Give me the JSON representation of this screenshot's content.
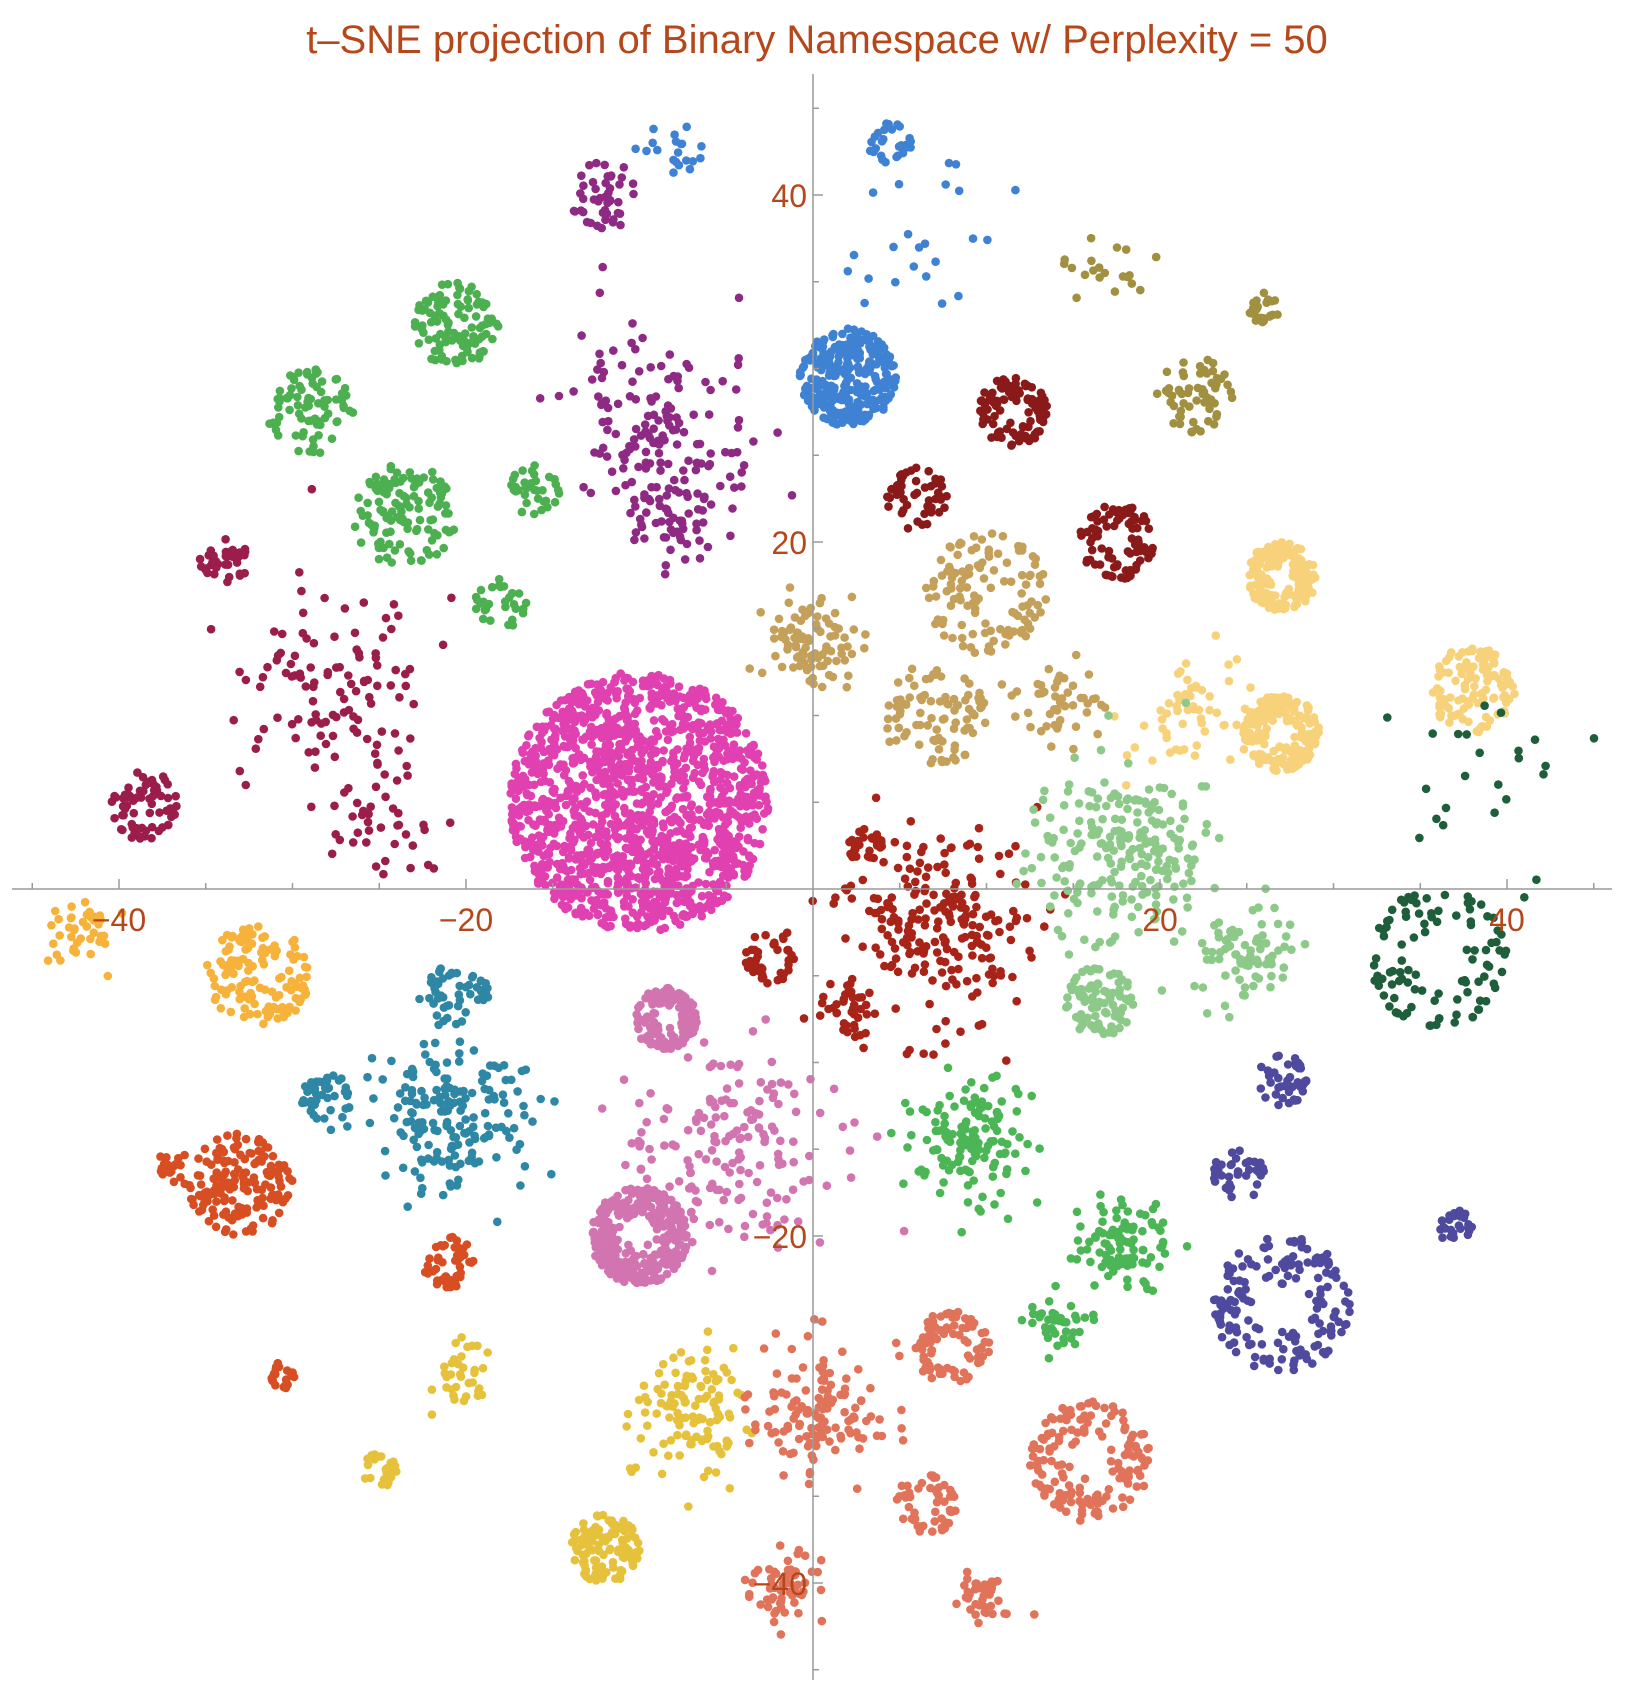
{
  "chart_data": {
    "type": "scatter",
    "title": "t–SNE projection of Binary Namespace w/ Perplexity = 50",
    "xlabel": "",
    "ylabel": "",
    "xlim": [
      -46,
      49
    ],
    "ylim": [
      -48,
      50
    ],
    "grid": false,
    "legend": "none",
    "x_ticks": [
      -40,
      -20,
      20,
      40
    ],
    "y_ticks": [
      40,
      20,
      -20,
      -40
    ],
    "x_tick_labels": [
      "−40",
      "−20",
      "20",
      "40"
    ],
    "y_tick_labels": [
      "40",
      "20",
      "−20",
      "−40"
    ],
    "axis_color": "#9a9a9a",
    "label_color": "#b5471b",
    "clusters": [
      {
        "color": "#e040b0",
        "center": [
          -10,
          5
        ],
        "spread": 7.5,
        "n": 1400,
        "shape": "disc"
      },
      {
        "color": "#3f82d4",
        "center": [
          2,
          29.5
        ],
        "spread": 2.8,
        "n": 300,
        "shape": "disc"
      },
      {
        "color": "#3f82d4",
        "center": [
          4.5,
          43
        ],
        "spread": 1.2,
        "n": 25,
        "shape": "ring"
      },
      {
        "color": "#3f82d4",
        "center": [
          6,
          37
        ],
        "spread": 6,
        "n": 25,
        "shape": "scatter"
      },
      {
        "color": "#3f82d4",
        "center": [
          -8,
          42
        ],
        "spread": 2,
        "n": 20,
        "shape": "scatter"
      },
      {
        "color": "#8e2a84",
        "center": [
          -12,
          40
        ],
        "spread": 2,
        "n": 45,
        "shape": "disc"
      },
      {
        "color": "#8e2a84",
        "center": [
          -9,
          27
        ],
        "spread": 6,
        "n": 120,
        "shape": "scatter"
      },
      {
        "color": "#8e2a84",
        "center": [
          -8,
          22
        ],
        "spread": 4,
        "n": 80,
        "shape": "scatter"
      },
      {
        "color": "#4caf50",
        "center": [
          -20.5,
          32.5
        ],
        "spread": 2.5,
        "n": 110,
        "shape": "disc"
      },
      {
        "color": "#4caf50",
        "center": [
          -29,
          27.5
        ],
        "spread": 2.5,
        "n": 80,
        "shape": "disc"
      },
      {
        "color": "#4caf50",
        "center": [
          -23.5,
          21.5
        ],
        "spread": 3,
        "n": 120,
        "shape": "disc"
      },
      {
        "color": "#4caf50",
        "center": [
          -16,
          23
        ],
        "spread": 1.5,
        "n": 35,
        "shape": "disc"
      },
      {
        "color": "#4caf50",
        "center": [
          -18,
          16.5
        ],
        "spread": 1.5,
        "n": 30,
        "shape": "disc"
      },
      {
        "color": "#9b1d4a",
        "center": [
          -34,
          19
        ],
        "spread": 1.5,
        "n": 35,
        "shape": "disc"
      },
      {
        "color": "#9b1d4a",
        "center": [
          -28,
          12
        ],
        "spread": 6,
        "n": 110,
        "shape": "scatter"
      },
      {
        "color": "#9b1d4a",
        "center": [
          -38.5,
          4.8
        ],
        "spread": 2,
        "n": 70,
        "shape": "disc"
      },
      {
        "color": "#9b1d4a",
        "center": [
          -25,
          4
        ],
        "spread": 4,
        "n": 40,
        "shape": "scatter"
      },
      {
        "color": "#8a1a1a",
        "center": [
          11.5,
          27.5
        ],
        "spread": 2,
        "n": 110,
        "shape": "ring"
      },
      {
        "color": "#8a1a1a",
        "center": [
          17.5,
          20
        ],
        "spread": 2.2,
        "n": 90,
        "shape": "ring"
      },
      {
        "color": "#8a1a1a",
        "center": [
          6,
          22.5
        ],
        "spread": 1.8,
        "n": 50,
        "shape": "disc"
      },
      {
        "color": "#a09040",
        "center": [
          22,
          28.5
        ],
        "spread": 2.2,
        "n": 60,
        "shape": "disc"
      },
      {
        "color": "#a09040",
        "center": [
          26,
          33.5
        ],
        "spread": 0.9,
        "n": 25,
        "shape": "ring"
      },
      {
        "color": "#a09040",
        "center": [
          17,
          36
        ],
        "spread": 2.5,
        "n": 20,
        "shape": "scatter"
      },
      {
        "color": "#c4a05a",
        "center": [
          10,
          17
        ],
        "spread": 3.5,
        "n": 120,
        "shape": "disc"
      },
      {
        "color": "#c4a05a",
        "center": [
          7,
          10
        ],
        "spread": 3,
        "n": 90,
        "shape": "disc"
      },
      {
        "color": "#c4a05a",
        "center": [
          0,
          14
        ],
        "spread": 3,
        "n": 90,
        "shape": "scatter"
      },
      {
        "color": "#c4a05a",
        "center": [
          14,
          11
        ],
        "spread": 3,
        "n": 50,
        "shape": "scatter"
      },
      {
        "color": "#f8d27a",
        "center": [
          27,
          18
        ],
        "spread": 2,
        "n": 160,
        "shape": "ring"
      },
      {
        "color": "#f8d27a",
        "center": [
          27,
          9
        ],
        "spread": 2.2,
        "n": 180,
        "shape": "ring"
      },
      {
        "color": "#f8d27a",
        "center": [
          38,
          11.5
        ],
        "spread": 2.5,
        "n": 110,
        "shape": "disc"
      },
      {
        "color": "#f8d27a",
        "center": [
          22,
          10
        ],
        "spread": 4,
        "n": 60,
        "shape": "scatter"
      },
      {
        "color": "#a82318",
        "center": [
          3,
          2.5
        ],
        "spread": 1,
        "n": 30,
        "shape": "ring"
      },
      {
        "color": "#a82318",
        "center": [
          7,
          -2
        ],
        "spread": 6,
        "n": 220,
        "shape": "scatter"
      },
      {
        "color": "#a82318",
        "center": [
          -2.5,
          -4
        ],
        "spread": 1.5,
        "n": 40,
        "shape": "ring"
      },
      {
        "color": "#a82318",
        "center": [
          2,
          -7
        ],
        "spread": 2,
        "n": 40,
        "shape": "scatter"
      },
      {
        "color": "#8dc989",
        "center": [
          18,
          2
        ],
        "spread": 6,
        "n": 220,
        "shape": "scatter"
      },
      {
        "color": "#8dc989",
        "center": [
          16.5,
          -6.5
        ],
        "spread": 2,
        "n": 90,
        "shape": "disc"
      },
      {
        "color": "#8dc989",
        "center": [
          25,
          -4
        ],
        "spread": 3,
        "n": 80,
        "shape": "scatter"
      },
      {
        "color": "#1f5e3a",
        "center": [
          36,
          -4
        ],
        "spread": 4,
        "n": 100,
        "shape": "ring"
      },
      {
        "color": "#1f5e3a",
        "center": [
          38,
          6
        ],
        "spread": 6,
        "n": 25,
        "shape": "scatter"
      },
      {
        "color": "#f6b23a",
        "center": [
          -32,
          -5
        ],
        "spread": 3,
        "n": 130,
        "shape": "disc"
      },
      {
        "color": "#f6b23a",
        "center": [
          -42,
          -2.5
        ],
        "spread": 2.5,
        "n": 40,
        "shape": "scatter"
      },
      {
        "color": "#2e87a4",
        "center": [
          -20.5,
          -6
        ],
        "spread": 1.8,
        "n": 50,
        "shape": "disc"
      },
      {
        "color": "#2e87a4",
        "center": [
          -21,
          -13
        ],
        "spread": 5,
        "n": 180,
        "shape": "scatter"
      },
      {
        "color": "#2e87a4",
        "center": [
          -28,
          -12
        ],
        "spread": 1.5,
        "n": 40,
        "shape": "disc"
      },
      {
        "color": "#d174b0",
        "center": [
          -8.5,
          -7.5
        ],
        "spread": 1.8,
        "n": 130,
        "shape": "ring"
      },
      {
        "color": "#d174b0",
        "center": [
          -10,
          -20
        ],
        "spread": 2.8,
        "n": 300,
        "shape": "ring"
      },
      {
        "color": "#d174b0",
        "center": [
          -5,
          -15
        ],
        "spread": 7,
        "n": 180,
        "shape": "scatter"
      },
      {
        "color": "#d64e22",
        "center": [
          -33,
          -17
        ],
        "spread": 3,
        "n": 160,
        "shape": "disc"
      },
      {
        "color": "#d64e22",
        "center": [
          -21,
          -21.5
        ],
        "spread": 1.5,
        "n": 45,
        "shape": "disc"
      },
      {
        "color": "#d64e22",
        "center": [
          -30.5,
          -28
        ],
        "spread": 0.8,
        "n": 20,
        "shape": "ring"
      },
      {
        "color": "#d64e22",
        "center": [
          -37,
          -16
        ],
        "spread": 1,
        "n": 20,
        "shape": "scatter"
      },
      {
        "color": "#e6c23c",
        "center": [
          -12,
          -38
        ],
        "spread": 2,
        "n": 110,
        "shape": "disc"
      },
      {
        "color": "#e6c23c",
        "center": [
          -25,
          -33.5
        ],
        "spread": 1,
        "n": 25,
        "shape": "ring"
      },
      {
        "color": "#e6c23c",
        "center": [
          -7,
          -30
        ],
        "spread": 4,
        "n": 120,
        "shape": "scatter"
      },
      {
        "color": "#e6c23c",
        "center": [
          -20,
          -28
        ],
        "spread": 2,
        "n": 35,
        "shape": "scatter"
      },
      {
        "color": "#4cb656",
        "center": [
          9,
          -14.5
        ],
        "spread": 4,
        "n": 140,
        "shape": "scatter"
      },
      {
        "color": "#4cb656",
        "center": [
          18,
          -20.5
        ],
        "spread": 3,
        "n": 100,
        "shape": "scatter"
      },
      {
        "color": "#4cb656",
        "center": [
          14,
          -25
        ],
        "spread": 2,
        "n": 40,
        "shape": "scatter"
      },
      {
        "color": "#4f4a9e",
        "center": [
          27,
          -24
        ],
        "spread": 4,
        "n": 160,
        "shape": "ring"
      },
      {
        "color": "#4f4a9e",
        "center": [
          24.5,
          -16.5
        ],
        "spread": 1.5,
        "n": 40,
        "shape": "disc"
      },
      {
        "color": "#4f4a9e",
        "center": [
          27,
          -11
        ],
        "spread": 1.5,
        "n": 40,
        "shape": "disc"
      },
      {
        "color": "#4f4a9e",
        "center": [
          37,
          -19.5
        ],
        "spread": 1,
        "n": 25,
        "shape": "disc"
      },
      {
        "color": "#e0735a",
        "center": [
          16,
          -33
        ],
        "spread": 3.5,
        "n": 150,
        "shape": "ring"
      },
      {
        "color": "#e0735a",
        "center": [
          8,
          -26.5
        ],
        "spread": 2.2,
        "n": 80,
        "shape": "ring"
      },
      {
        "color": "#e0735a",
        "center": [
          6.5,
          -35.5
        ],
        "spread": 1.8,
        "n": 50,
        "shape": "ring"
      },
      {
        "color": "#e0735a",
        "center": [
          0.5,
          -30
        ],
        "spread": 4,
        "n": 130,
        "shape": "scatter"
      },
      {
        "color": "#e0735a",
        "center": [
          10,
          -41
        ],
        "spread": 2,
        "n": 40,
        "shape": "scatter"
      },
      {
        "color": "#e0735a",
        "center": [
          -2,
          -40
        ],
        "spread": 2.5,
        "n": 60,
        "shape": "scatter"
      }
    ]
  }
}
